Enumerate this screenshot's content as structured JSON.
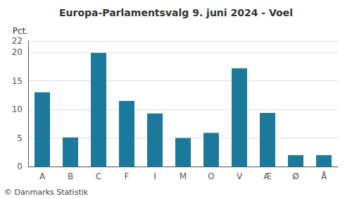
{
  "chart_data": {
    "type": "bar",
    "title": "Europa-Parlamentsvalg 9. juni 2024 - Voel",
    "categories": [
      "A",
      "B",
      "C",
      "F",
      "I",
      "M",
      "O",
      "V",
      "Æ",
      "Ø",
      "Å"
    ],
    "values": [
      13.0,
      5.1,
      19.9,
      11.5,
      9.3,
      5.0,
      5.9,
      17.2,
      9.4,
      2.0,
      2.0
    ],
    "color": "#1b7a9b",
    "ylabel": "Pct.",
    "ylim": [
      0,
      22
    ],
    "yticks": [
      0,
      5,
      10,
      15,
      20
    ],
    "grid": true,
    "annotations": [
      "© Danmarks Statistik"
    ]
  }
}
